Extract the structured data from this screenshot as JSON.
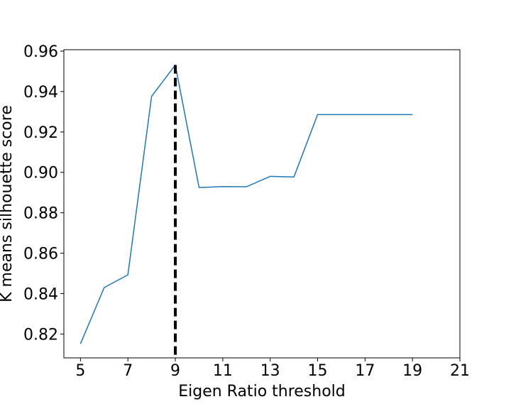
{
  "chart_data": {
    "type": "line",
    "title": "",
    "xlabel": "Eigen Ratio threshold",
    "ylabel": "K means silhouette score",
    "xlim": [
      4.3,
      21
    ],
    "ylim": [
      0.8082,
      0.9607
    ],
    "xticks": [
      5,
      7,
      9,
      11,
      13,
      15,
      17,
      19,
      21
    ],
    "xtick_labels": [
      "5",
      "7",
      "9",
      "11",
      "13",
      "15",
      "17",
      "19",
      "21"
    ],
    "yticks": [
      0.82,
      0.84,
      0.86,
      0.88,
      0.9,
      0.92,
      0.94,
      0.96
    ],
    "ytick_labels": [
      "0.82",
      "0.84",
      "0.86",
      "0.88",
      "0.90",
      "0.92",
      "0.94",
      "0.96"
    ],
    "grid": false,
    "series": [
      {
        "x": [
          5,
          6,
          7,
          8,
          9,
          10,
          11,
          12,
          13,
          14,
          15,
          16,
          17,
          18,
          19
        ],
        "values": [
          0.8152,
          0.843,
          0.8493,
          0.9376,
          0.9531,
          0.8925,
          0.893,
          0.8929,
          0.898,
          0.8977,
          0.9286,
          0.9286,
          0.9286,
          0.9286,
          0.9286
        ],
        "color": "#1f77b4"
      }
    ],
    "vline": {
      "x": 9,
      "style": "dashed",
      "color": "#000000"
    }
  }
}
